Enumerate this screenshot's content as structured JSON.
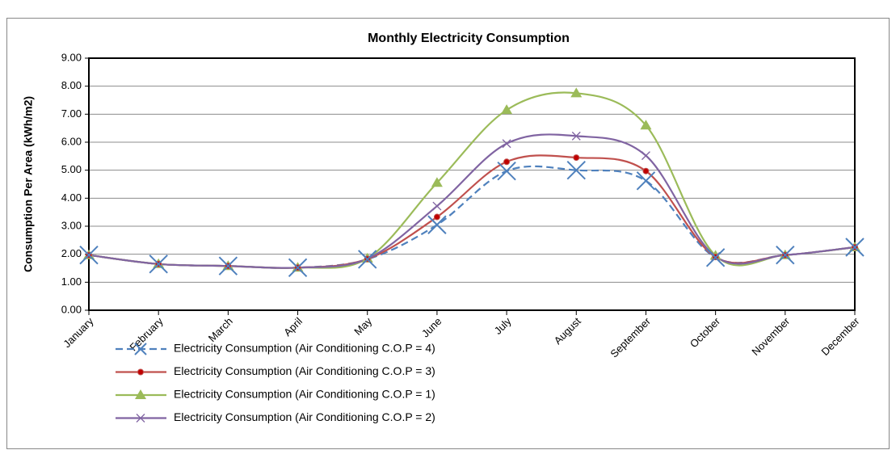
{
  "chart_data": {
    "type": "line",
    "title": "Monthly Electricity Consumption",
    "y_label": "Consumption Per Area (kWh/m2)",
    "categories": [
      "January",
      "February",
      "March",
      "April",
      "May",
      "June",
      "July",
      "August",
      "September",
      "October",
      "November",
      "December"
    ],
    "series": [
      {
        "name": "Electricity Consumption (Air Conditioning C.O.P = 4)",
        "color": "#4f81bd",
        "line_style": "dashed",
        "marker": "cross",
        "values": [
          1.97,
          1.65,
          1.58,
          1.52,
          1.82,
          3.05,
          4.97,
          5.0,
          4.62,
          1.88,
          1.97,
          2.25
        ]
      },
      {
        "name": "Electricity Consumption (Air Conditioning C.O.P = 3)",
        "color": "#c0504d",
        "line_style": "solid",
        "marker": "circle",
        "values": [
          1.97,
          1.65,
          1.58,
          1.52,
          1.83,
          3.33,
          5.3,
          5.45,
          4.97,
          1.9,
          1.97,
          2.25
        ]
      },
      {
        "name": "Electricity Consumption (Air Conditioning C.O.P = 1)",
        "color": "#9bbb59",
        "line_style": "solid",
        "marker": "triangle",
        "values": [
          1.97,
          1.65,
          1.58,
          1.52,
          1.85,
          4.55,
          7.15,
          7.75,
          6.6,
          1.95,
          1.97,
          2.25
        ]
      },
      {
        "name": "Electricity Consumption (Air Conditioning C.O.P = 2)",
        "color": "#8064a2",
        "line_style": "solid",
        "marker": "x",
        "values": [
          1.97,
          1.65,
          1.58,
          1.52,
          1.84,
          3.72,
          5.95,
          6.22,
          5.52,
          1.92,
          1.97,
          2.25
        ]
      }
    ],
    "ylim": [
      0,
      9
    ],
    "yticks": [
      {
        "value": 0,
        "label": "0.00"
      },
      {
        "value": 1,
        "label": "1.00"
      },
      {
        "value": 2,
        "label": "2.00"
      },
      {
        "value": 3,
        "label": "3.00"
      },
      {
        "value": 4,
        "label": "4.00"
      },
      {
        "value": 5,
        "label": "5.00"
      },
      {
        "value": 6,
        "label": "6.00"
      },
      {
        "value": 7,
        "label": "7.00"
      },
      {
        "value": 8,
        "label": "8.00"
      },
      {
        "value": 9,
        "label": "9.00"
      }
    ],
    "grid": true,
    "smooth": true,
    "legend": "bottom"
  }
}
